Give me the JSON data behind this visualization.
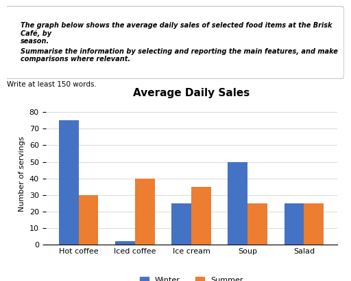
{
  "title": "Average Daily Sales",
  "categories": [
    "Hot coffee",
    "Iced coffee",
    "Ice cream",
    "Soup",
    "Salad"
  ],
  "winter_values": [
    75,
    2,
    25,
    50,
    25
  ],
  "summer_values": [
    30,
    40,
    35,
    25,
    25
  ],
  "winter_color": "#4472C4",
  "summer_color": "#ED7D31",
  "ylabel": "Number of servings",
  "ylim": [
    0,
    85
  ],
  "yticks": [
    0,
    10,
    20,
    30,
    40,
    50,
    60,
    70,
    80
  ],
  "legend_labels": [
    "Winter",
    "Summer"
  ],
  "prompt_text1": "The graph below shows the average daily sales of selected food items at the Brisk Café, by\nseason.",
  "prompt_text2": "Summarise the information by selecting and reporting the main features, and make\ncomparisons where relevant.",
  "subtext": "Write at least 150 words.",
  "bar_width": 0.35
}
